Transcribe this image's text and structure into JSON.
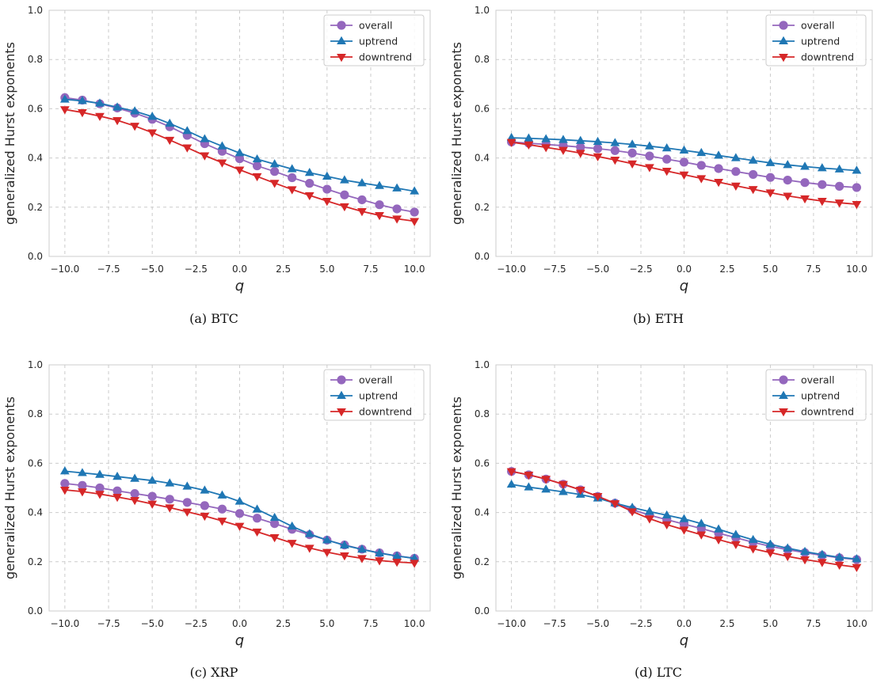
{
  "chart_data": [
    {
      "type": "line",
      "caption": "(a) BTC",
      "xlabel": "q",
      "ylabel": "generalized Hurst exponents",
      "xlim": [
        -10.9,
        10.9
      ],
      "ylim": [
        0.0,
        1.0
      ],
      "xticks": [
        "−10.0",
        "−7.5",
        "−5.0",
        "−2.5",
        "0.0",
        "2.5",
        "5.0",
        "7.5",
        "10.0"
      ],
      "yticks": [
        "0.0",
        "0.2",
        "0.4",
        "0.6",
        "0.8",
        "1.0"
      ],
      "grid": true,
      "legend_position": "top-right",
      "x": [
        -10,
        -9,
        -8,
        -7,
        -6,
        -5,
        -4,
        -3,
        -2,
        -1,
        0,
        1,
        2,
        3,
        4,
        5,
        6,
        7,
        8,
        9,
        10
      ],
      "series": [
        {
          "name": "overall",
          "marker": "circle",
          "color": "#9467bd",
          "values": [
            0.645,
            0.635,
            0.62,
            0.603,
            0.582,
            0.557,
            0.527,
            0.492,
            0.458,
            0.427,
            0.397,
            0.368,
            0.345,
            0.32,
            0.297,
            0.273,
            0.25,
            0.23,
            0.21,
            0.193,
            0.18
          ]
        },
        {
          "name": "uptrend",
          "marker": "triangle-up",
          "color": "#1f77b4",
          "values": [
            0.638,
            0.632,
            0.622,
            0.606,
            0.59,
            0.568,
            0.54,
            0.51,
            0.477,
            0.448,
            0.42,
            0.395,
            0.375,
            0.355,
            0.34,
            0.325,
            0.31,
            0.298,
            0.287,
            0.277,
            0.265
          ]
        },
        {
          "name": "downtrend",
          "marker": "triangle-down",
          "color": "#d62728",
          "values": [
            0.597,
            0.585,
            0.57,
            0.553,
            0.53,
            0.503,
            0.473,
            0.442,
            0.41,
            0.381,
            0.352,
            0.325,
            0.298,
            0.272,
            0.248,
            0.225,
            0.203,
            0.183,
            0.167,
            0.153,
            0.143
          ]
        }
      ]
    },
    {
      "type": "line",
      "caption": "(b) ETH",
      "xlabel": "q",
      "ylabel": "generalized Hurst exponents",
      "xlim": [
        -10.9,
        10.9
      ],
      "ylim": [
        0.0,
        1.0
      ],
      "xticks": [
        "−10.0",
        "−7.5",
        "−5.0",
        "−2.5",
        "0.0",
        "2.5",
        "5.0",
        "7.5",
        "10.0"
      ],
      "yticks": [
        "0.0",
        "0.2",
        "0.4",
        "0.6",
        "0.8",
        "1.0"
      ],
      "grid": true,
      "legend_position": "top-right",
      "x": [
        -10,
        -9,
        -8,
        -7,
        -6,
        -5,
        -4,
        -3,
        -2,
        -1,
        0,
        1,
        2,
        3,
        4,
        5,
        6,
        7,
        8,
        9,
        10
      ],
      "series": [
        {
          "name": "overall",
          "marker": "circle",
          "color": "#9467bd",
          "values": [
            0.465,
            0.46,
            0.455,
            0.45,
            0.444,
            0.438,
            0.43,
            0.42,
            0.408,
            0.395,
            0.383,
            0.37,
            0.357,
            0.345,
            0.333,
            0.321,
            0.31,
            0.3,
            0.292,
            0.285,
            0.28
          ]
        },
        {
          "name": "uptrend",
          "marker": "triangle-up",
          "color": "#1f77b4",
          "values": [
            0.482,
            0.48,
            0.477,
            0.474,
            0.47,
            0.466,
            0.461,
            0.455,
            0.448,
            0.44,
            0.431,
            0.421,
            0.41,
            0.4,
            0.39,
            0.38,
            0.372,
            0.365,
            0.359,
            0.354,
            0.349
          ]
        },
        {
          "name": "downtrend",
          "marker": "triangle-down",
          "color": "#d62728",
          "values": [
            0.464,
            0.454,
            0.443,
            0.432,
            0.42,
            0.406,
            0.392,
            0.377,
            0.362,
            0.347,
            0.332,
            0.317,
            0.302,
            0.287,
            0.273,
            0.259,
            0.246,
            0.235,
            0.225,
            0.218,
            0.212
          ]
        }
      ]
    },
    {
      "type": "line",
      "caption": "(c) XRP",
      "xlabel": "q",
      "ylabel": "generalized Hurst exponents",
      "xlim": [
        -10.9,
        10.9
      ],
      "ylim": [
        0.0,
        1.0
      ],
      "xticks": [
        "−10.0",
        "−7.5",
        "−5.0",
        "−2.5",
        "0.0",
        "2.5",
        "5.0",
        "7.5",
        "10.0"
      ],
      "yticks": [
        "0.0",
        "0.2",
        "0.4",
        "0.6",
        "0.8",
        "1.0"
      ],
      "grid": true,
      "legend_position": "top-right",
      "x": [
        -10,
        -9,
        -8,
        -7,
        -6,
        -5,
        -4,
        -3,
        -2,
        -1,
        0,
        1,
        2,
        3,
        4,
        5,
        6,
        7,
        8,
        9,
        10
      ],
      "series": [
        {
          "name": "overall",
          "marker": "circle",
          "color": "#9467bd",
          "values": [
            0.518,
            0.51,
            0.5,
            0.488,
            0.477,
            0.466,
            0.454,
            0.441,
            0.428,
            0.414,
            0.396,
            0.377,
            0.355,
            0.332,
            0.31,
            0.288,
            0.268,
            0.251,
            0.236,
            0.224,
            0.214
          ]
        },
        {
          "name": "uptrend",
          "marker": "triangle-up",
          "color": "#1f77b4",
          "values": [
            0.568,
            0.561,
            0.554,
            0.546,
            0.538,
            0.53,
            0.519,
            0.506,
            0.49,
            0.47,
            0.445,
            0.413,
            0.379,
            0.344,
            0.313,
            0.288,
            0.267,
            0.25,
            0.235,
            0.223,
            0.214
          ]
        },
        {
          "name": "downtrend",
          "marker": "triangle-down",
          "color": "#d62728",
          "values": [
            0.492,
            0.485,
            0.475,
            0.463,
            0.45,
            0.435,
            0.42,
            0.403,
            0.386,
            0.366,
            0.345,
            0.322,
            0.299,
            0.276,
            0.256,
            0.239,
            0.225,
            0.214,
            0.205,
            0.199,
            0.195
          ]
        }
      ]
    },
    {
      "type": "line",
      "caption": "(d) LTC",
      "xlabel": "q",
      "ylabel": "generalized Hurst exponents",
      "xlim": [
        -10.9,
        10.9
      ],
      "ylim": [
        0.0,
        1.0
      ],
      "xticks": [
        "−10.0",
        "−7.5",
        "−5.0",
        "−2.5",
        "0.0",
        "2.5",
        "5.0",
        "7.5",
        "10.0"
      ],
      "yticks": [
        "0.0",
        "0.2",
        "0.4",
        "0.6",
        "0.8",
        "1.0"
      ],
      "grid": true,
      "legend_position": "top-right",
      "x": [
        -10,
        -9,
        -8,
        -7,
        -6,
        -5,
        -4,
        -3,
        -2,
        -1,
        0,
        1,
        2,
        3,
        4,
        5,
        6,
        7,
        8,
        9,
        10
      ],
      "series": [
        {
          "name": "overall",
          "marker": "circle",
          "color": "#9467bd",
          "values": [
            0.567,
            0.553,
            0.536,
            0.515,
            0.492,
            0.465,
            0.438,
            0.412,
            0.389,
            0.371,
            0.353,
            0.335,
            0.316,
            0.298,
            0.279,
            0.263,
            0.249,
            0.237,
            0.226,
            0.216,
            0.209
          ]
        },
        {
          "name": "uptrend",
          "marker": "triangle-up",
          "color": "#1f77b4",
          "values": [
            0.514,
            0.503,
            0.494,
            0.484,
            0.473,
            0.458,
            0.438,
            0.42,
            0.404,
            0.389,
            0.374,
            0.355,
            0.332,
            0.31,
            0.289,
            0.271,
            0.255,
            0.241,
            0.229,
            0.218,
            0.211
          ]
        },
        {
          "name": "downtrend",
          "marker": "triangle-down",
          "color": "#d62728",
          "values": [
            0.567,
            0.553,
            0.536,
            0.515,
            0.492,
            0.466,
            0.437,
            0.404,
            0.375,
            0.351,
            0.33,
            0.31,
            0.29,
            0.271,
            0.253,
            0.237,
            0.222,
            0.209,
            0.198,
            0.187,
            0.178
          ]
        }
      ]
    }
  ]
}
